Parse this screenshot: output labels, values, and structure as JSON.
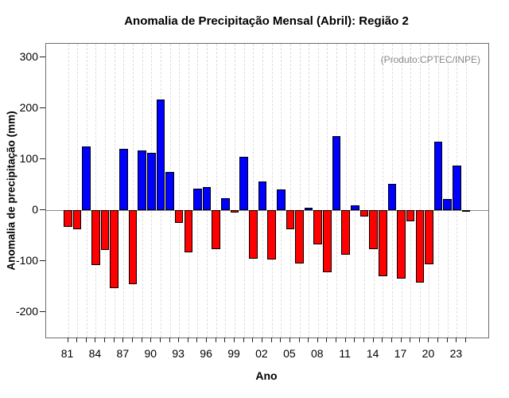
{
  "title": "Anomalia de Precipitação Mensal (Abril): Região 2",
  "chart_data": {
    "type": "bar",
    "title": "Anomalia de Precipitação Mensal (Abril): Região 2",
    "annotation": "(Produto:CPTEC/INPE)",
    "xlabel": "Ano",
    "ylabel": "Anomalia de precipitação (mm)",
    "legend": "none",
    "grid": "vertical-dashed",
    "ylim": [
      -250,
      327
    ],
    "yticks": [
      300,
      200,
      100,
      0,
      -100,
      -200
    ],
    "xtick_labels": [
      "81",
      "84",
      "87",
      "90",
      "93",
      "96",
      "99",
      "02",
      "05",
      "08",
      "11",
      "14",
      "17",
      "20",
      "23"
    ],
    "xtick_years": [
      1981,
      1984,
      1987,
      1990,
      1993,
      1996,
      1999,
      2002,
      2005,
      2008,
      2011,
      2014,
      2017,
      2020,
      2023
    ],
    "years": [
      1981,
      1982,
      1983,
      1984,
      1985,
      1986,
      1987,
      1988,
      1989,
      1990,
      1991,
      1992,
      1993,
      1994,
      1995,
      1996,
      1997,
      1998,
      1999,
      2000,
      2001,
      2002,
      2003,
      2004,
      2005,
      2006,
      2007,
      2008,
      2009,
      2010,
      2011,
      2012,
      2013,
      2014,
      2015,
      2016,
      2017,
      2018,
      2019,
      2020,
      2021,
      2022,
      2023,
      2024
    ],
    "values": [
      -33,
      -38,
      125,
      -108,
      -78,
      -153,
      120,
      -145,
      118,
      112,
      218,
      75,
      -25,
      -83,
      42,
      45,
      -77,
      23,
      -4,
      105,
      -95,
      57,
      -97,
      41,
      -37,
      -105,
      5,
      -67,
      -122,
      145,
      -88,
      9,
      -12,
      -77,
      -130,
      52,
      -134,
      -22,
      -142,
      -106,
      135,
      22,
      88,
      -2
    ],
    "bar_colors": {
      "positive": "#0000ff",
      "negative": "#ff0000"
    }
  }
}
